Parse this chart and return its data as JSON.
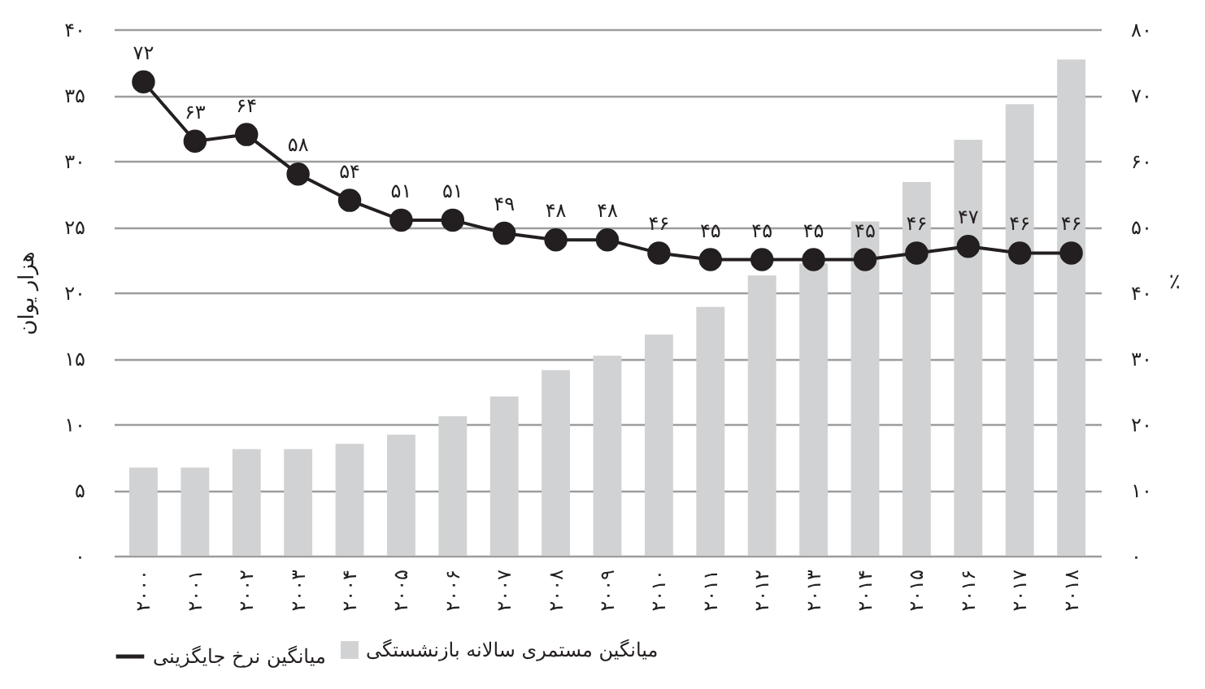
{
  "chart_data": {
    "type": "bar",
    "xlabel": null,
    "ylabel": "هزار یوان",
    "y2label": "٪",
    "categories": [
      "۲۰۰۰",
      "۲۰۰۱",
      "۲۰۰۲",
      "۲۰۰۳",
      "۲۰۰۴",
      "۲۰۰۵",
      "۲۰۰۶",
      "۲۰۰۷",
      "۲۰۰۸",
      "۲۰۰۹",
      "۲۰۱۰",
      "۲۰۱۱",
      "۲۰۱۲",
      "۲۰۱۳",
      "۲۰۱۴",
      "۲۰۱۵",
      "۲۰۱۶",
      "۲۰۱۷",
      "۲۰۱۸"
    ],
    "series": [
      {
        "name": "میانگین مستمری سالانه بازنشستگی",
        "color": "#d1d2d4",
        "values": [
          6.7,
          6.7,
          8.1,
          8.1,
          8.5,
          9.2,
          10.6,
          12.1,
          14.1,
          15.2,
          16.8,
          18.9,
          21.3,
          22.2,
          25.4,
          28.4,
          31.6,
          34.3,
          37.7
        ]
      },
      {
        "name": "میانگین نرخ جایگزینی",
        "type": "line",
        "axis": "y2",
        "color": "#231f20",
        "values": [
          72,
          63,
          64,
          58,
          54,
          51,
          51,
          49,
          48,
          48,
          46,
          45,
          45,
          45,
          45,
          46,
          47,
          46,
          46
        ],
        "value_labels": [
          "۷۲",
          "۶۳",
          "۶۴",
          "۵۸",
          "۵۴",
          "۵۱",
          "۵۱",
          "۴۹",
          "۴۸",
          "۴۸",
          "۴۶",
          "۴۵",
          "۴۵",
          "۴۵",
          "۴۵",
          "۴۶",
          "۴۷",
          "۴۶",
          "۴۶"
        ]
      }
    ],
    "ylim": [
      0,
      40
    ],
    "yticks": [
      {
        "value": 0,
        "label": "۰"
      },
      {
        "value": 5,
        "label": "۵"
      },
      {
        "value": 10,
        "label": "۱۰"
      },
      {
        "value": 15,
        "label": "۱۵"
      },
      {
        "value": 20,
        "label": "۲۰"
      },
      {
        "value": 25,
        "label": "۲۵"
      },
      {
        "value": 30,
        "label": "۳۰"
      },
      {
        "value": 35,
        "label": "۳۵"
      },
      {
        "value": 40,
        "label": "۴۰"
      }
    ],
    "y2lim": [
      0,
      80
    ],
    "y2ticks": [
      {
        "value": 0,
        "label": "۰"
      },
      {
        "value": 10,
        "label": "۱۰"
      },
      {
        "value": 20,
        "label": "۲۰"
      },
      {
        "value": 30,
        "label": "۳۰"
      },
      {
        "value": 40,
        "label": "۴۰"
      },
      {
        "value": 50,
        "label": "۵۰"
      },
      {
        "value": 60,
        "label": "۶۰"
      },
      {
        "value": 70,
        "label": "۷۰"
      },
      {
        "value": 80,
        "label": "۸۰"
      }
    ],
    "grid": "y",
    "legend": "bottom",
    "marker": "circle",
    "line_style": "solid"
  }
}
